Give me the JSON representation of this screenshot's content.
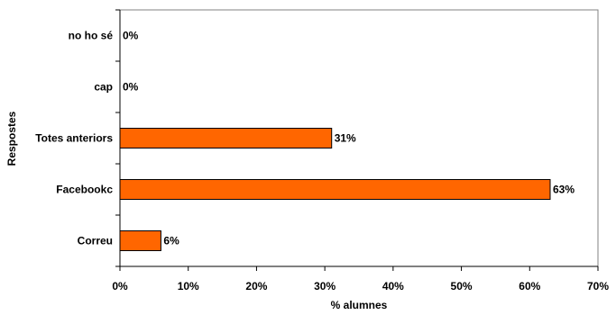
{
  "chart_data": {
    "type": "bar",
    "orientation": "horizontal",
    "categories": [
      "no ho sé",
      "cap",
      "Totes anteriors",
      "Facebookc",
      "Correu"
    ],
    "values": [
      0,
      0,
      31,
      63,
      6
    ],
    "data_labels": [
      "0%",
      "0%",
      "31%",
      "63%",
      "6%"
    ],
    "xlabel": "% alumnes",
    "ylabel": "Respostes",
    "xlim": [
      0,
      70
    ],
    "x_ticks": [
      "0%",
      "10%",
      "20%",
      "30%",
      "40%",
      "50%",
      "60%",
      "70%"
    ],
    "grid": false,
    "legend": "none",
    "bar_color": "#FF6600",
    "bar_edge_color": "#000000"
  }
}
